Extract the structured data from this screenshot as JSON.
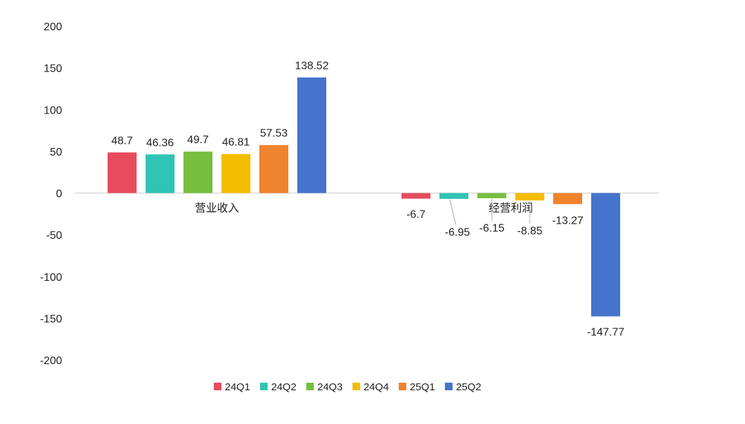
{
  "chart_data": {
    "type": "bar",
    "title": "",
    "xlabel": "",
    "ylabel": "",
    "ylim": [
      -200,
      200
    ],
    "yticks": [
      200,
      150,
      100,
      50,
      0,
      -50,
      -100,
      -150,
      -200
    ],
    "grid": false,
    "legend_position": "bottom",
    "categories": [
      "营业收入",
      "经营利润"
    ],
    "series": [
      {
        "name": "24Q1",
        "color": "#e64c5e",
        "values": [
          48.7,
          -6.7
        ]
      },
      {
        "name": "24Q2",
        "color": "#30c4b5",
        "values": [
          46.36,
          -6.95
        ]
      },
      {
        "name": "24Q3",
        "color": "#76bf3f",
        "values": [
          49.7,
          -6.15
        ]
      },
      {
        "name": "24Q4",
        "color": "#f5bd00",
        "values": [
          46.81,
          -8.85
        ]
      },
      {
        "name": "25Q1",
        "color": "#f0832d",
        "values": [
          57.53,
          -13.27
        ]
      },
      {
        "name": "25Q2",
        "color": "#4673cc",
        "values": [
          138.52,
          -147.77
        ]
      }
    ]
  }
}
